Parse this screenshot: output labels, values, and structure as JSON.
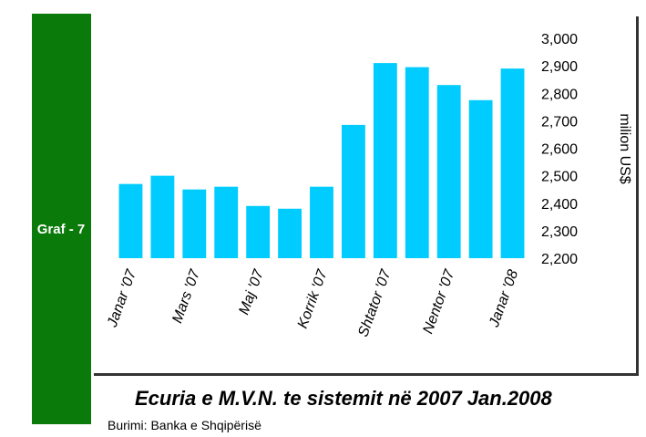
{
  "chart_data": {
    "type": "bar",
    "label": "Graf - 7",
    "title": "Ecuria e M.V.N. te sistemit  në 2007 Jan.2008",
    "source": "Burimi: Banka e Shqipërisë",
    "y_axis_label": "milion US$",
    "categories": [
      "Janar '07",
      null,
      "Mars '07",
      null,
      "Maj '07",
      null,
      "Korrik '07",
      null,
      "Shtator '07",
      null,
      "Nentor '07",
      null,
      "Janar '08"
    ],
    "values": [
      2470,
      2500,
      2450,
      2460,
      2390,
      2380,
      2460,
      2685,
      2910,
      2895,
      2830,
      2775,
      2890
    ],
    "color": "#00ccff",
    "ylim": [
      2200,
      3000
    ],
    "yticks": [
      {
        "value": 2200,
        "label": "2,200"
      },
      {
        "value": 2300,
        "label": "2,300"
      },
      {
        "value": 2400,
        "label": "2,400"
      },
      {
        "value": 2500,
        "label": "2,500"
      },
      {
        "value": 2600,
        "label": "2,600"
      },
      {
        "value": 2700,
        "label": "2,700"
      },
      {
        "value": 2800,
        "label": "2,800"
      },
      {
        "value": 2900,
        "label": "2,900"
      },
      {
        "value": 3000,
        "label": "3,000"
      }
    ]
  }
}
